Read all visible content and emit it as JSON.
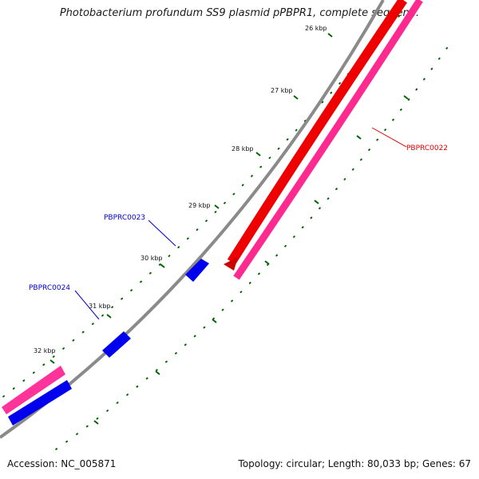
{
  "title": "Photobacterium profundum SS9 plasmid pPBPR1, complete sequen...",
  "footer": {
    "accession": "Accession: NC_005871",
    "topology": "Topology: circular; Length: 80,033 bp; Genes: 67"
  },
  "scale_labels": [
    "26 kbp",
    "27 kbp",
    "28 kbp",
    "29 kbp",
    "30 kbp",
    "31 kbp",
    "32 kbp"
  ],
  "genes": [
    {
      "name": "PBPRC0022",
      "color": "#dd0000"
    },
    {
      "name": "PBPRC0023",
      "color": "#0000cc"
    },
    {
      "name": "PBPRC0024",
      "color": "#0000cc"
    }
  ],
  "colors": {
    "backbone": "#808080",
    "forward_cds": "#ff0000",
    "forward_gene": "#ff2a90",
    "reverse_cds": "#0000ff",
    "reverse_gene": "#ff3399",
    "ticks": "#006400"
  }
}
